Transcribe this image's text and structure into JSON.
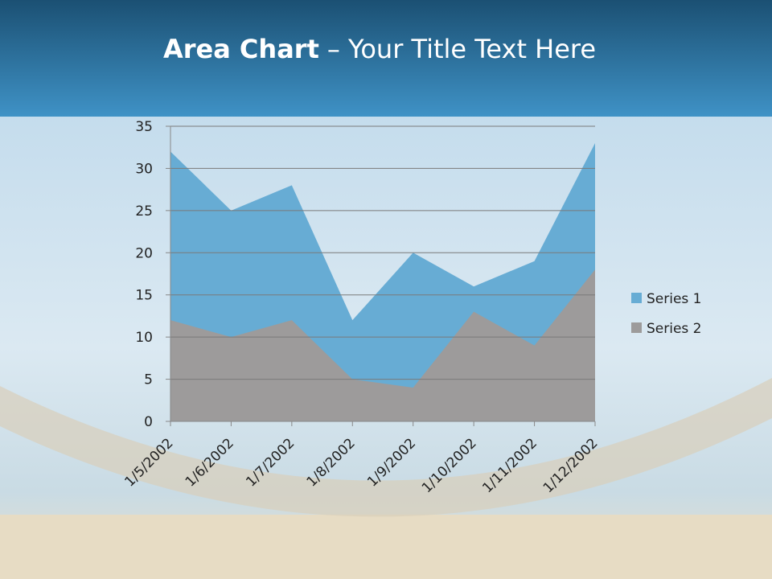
{
  "header": {
    "title_bold": "Area Chart",
    "title_rest": "– Your Title Text Here"
  },
  "chart_data": {
    "type": "area",
    "categories": [
      "1/5/2002",
      "1/6/2002",
      "1/7/2002",
      "1/8/2002",
      "1/9/2002",
      "1/10/2002",
      "1/11/2002",
      "1/12/2002"
    ],
    "series": [
      {
        "name": "Series 1",
        "color": "#67acd4",
        "values": [
          32,
          25,
          28,
          12,
          20,
          16,
          19,
          33
        ]
      },
      {
        "name": "Series 2",
        "color": "#9d9b9b",
        "values": [
          12,
          10,
          12,
          5,
          4,
          13,
          9,
          18
        ]
      }
    ],
    "ylim": [
      0,
      35
    ],
    "yticks": [
      0,
      5,
      10,
      15,
      20,
      25,
      30,
      35
    ],
    "grid": true,
    "legend": "right"
  }
}
